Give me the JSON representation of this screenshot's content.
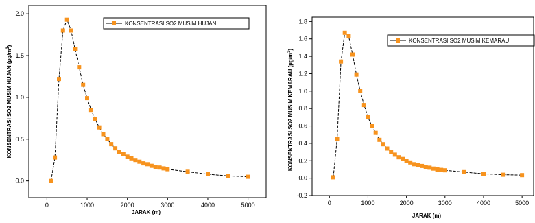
{
  "colors": {
    "marker": "#f7931e",
    "line": "#000000"
  },
  "chart_data": [
    {
      "type": "line",
      "xlabel": "JARAK (m)",
      "ylabel": "KONSENTRASI SO2 MUSIM HUJAN (µg/m³)",
      "xlim": [
        -450,
        5450
      ],
      "ylim": [
        -0.2,
        2.1
      ],
      "xticks": [
        0,
        1000,
        2000,
        3000,
        4000,
        5000
      ],
      "yticks": [
        0.0,
        0.5,
        1.0,
        1.5,
        2.0
      ],
      "ytick_labels": [
        "0.0",
        "0.5",
        "1.0",
        "1.5",
        "2.0"
      ],
      "legend": {
        "label": "KONSENTRASI SO2 MUSIM HUJAN",
        "placement": "top-right"
      },
      "x": [
        100,
        200,
        300,
        400,
        500,
        600,
        700,
        800,
        900,
        1000,
        1100,
        1200,
        1300,
        1400,
        1500,
        1600,
        1700,
        1800,
        1900,
        2000,
        2100,
        2200,
        2300,
        2400,
        2500,
        2600,
        2700,
        2800,
        2900,
        3000,
        3500,
        4000,
        4500,
        5000
      ],
      "y": [
        0.0,
        0.28,
        1.22,
        1.8,
        1.93,
        1.8,
        1.58,
        1.36,
        1.15,
        0.99,
        0.85,
        0.74,
        0.64,
        0.56,
        0.5,
        0.44,
        0.39,
        0.35,
        0.32,
        0.29,
        0.27,
        0.25,
        0.23,
        0.21,
        0.2,
        0.18,
        0.17,
        0.16,
        0.15,
        0.14,
        0.11,
        0.08,
        0.06,
        0.05
      ]
    },
    {
      "type": "line",
      "xlabel": "JARAK (m)",
      "ylabel": "KONSENTRASI SO2 MUSIM KEMARAU (µg/m³)",
      "xlim": [
        -450,
        5300
      ],
      "ylim": [
        -0.2,
        1.85
      ],
      "xticks": [
        0,
        1000,
        2000,
        3000,
        4000,
        5000
      ],
      "yticks": [
        -0.2,
        0.0,
        0.2,
        0.4,
        0.6,
        0.8,
        1.0,
        1.2,
        1.4,
        1.6,
        1.8
      ],
      "ytick_labels": [
        "-0.2",
        "0.0",
        "0.2",
        "0.4",
        "0.6",
        "0.8",
        "1.0",
        "1.2",
        "1.4",
        "1.6",
        "1.8"
      ],
      "legend": {
        "label": "KONSENTRASI SO2 MUSIM KEMARAU",
        "placement": "top-right"
      },
      "x": [
        100,
        200,
        300,
        400,
        500,
        600,
        700,
        800,
        900,
        1000,
        1100,
        1200,
        1300,
        1400,
        1500,
        1600,
        1700,
        1800,
        1900,
        2000,
        2100,
        2200,
        2300,
        2400,
        2500,
        2600,
        2700,
        2800,
        2900,
        3000,
        3500,
        4000,
        4500,
        5000
      ],
      "y": [
        0.01,
        0.45,
        1.34,
        1.67,
        1.63,
        1.42,
        1.19,
        1.0,
        0.84,
        0.7,
        0.6,
        0.52,
        0.44,
        0.39,
        0.34,
        0.3,
        0.27,
        0.24,
        0.22,
        0.2,
        0.18,
        0.16,
        0.15,
        0.14,
        0.13,
        0.12,
        0.11,
        0.1,
        0.095,
        0.09,
        0.07,
        0.05,
        0.04,
        0.035
      ]
    }
  ]
}
